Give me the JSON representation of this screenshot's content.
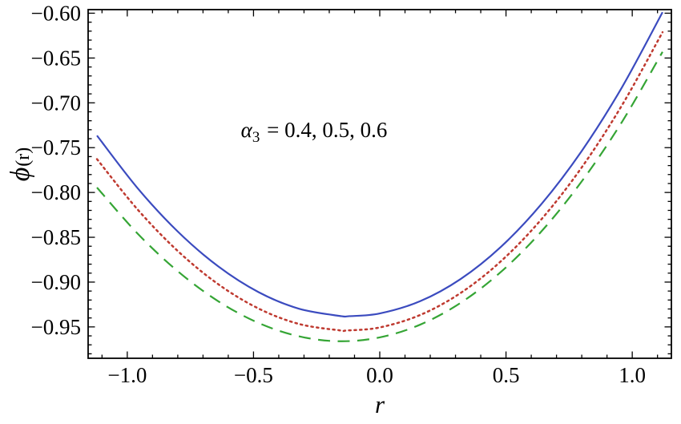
{
  "figure": {
    "background": "#ffffff",
    "frame_color": "#000000",
    "text_color": "#000000"
  },
  "chart_data": {
    "type": "line",
    "title": "",
    "xlabel": "r",
    "ylabel": "ϕ(r)",
    "ylabel_parts": {
      "symbol": "ϕ",
      "paren": "(r)"
    },
    "annotation": "α3 = 0.4, 0.5, 0.6",
    "annotation_parts": {
      "symbol": "α",
      "sub": "3",
      "rest": " =  0.4,  0.5,  0.6"
    },
    "annotation_pos": [
      -0.55,
      -0.738
    ],
    "xlim": [
      -1.155,
      1.155
    ],
    "ylim": [
      -0.985,
      -0.596
    ],
    "x_ticks": [
      -1.0,
      -0.5,
      0.0,
      0.5,
      1.0
    ],
    "x_tick_labels": [
      "−1.0",
      "−0.5",
      "0.0",
      "0.5",
      "1.0"
    ],
    "x_minor_step": 0.1,
    "y_ticks": [
      -0.6,
      -0.65,
      -0.7,
      -0.75,
      -0.8,
      -0.85,
      -0.9,
      -0.95
    ],
    "y_tick_labels": [
      "−0.60",
      "−0.65",
      "−0.70",
      "−0.75",
      "−0.80",
      "−0.85",
      "−0.90",
      "−0.95"
    ],
    "y_minor_step": 0.01,
    "grid": false,
    "legend": "none",
    "frame": true,
    "series": [
      {
        "name": "α3 = 0.4",
        "style": "solid",
        "color": "#3b4bbf",
        "points": [
          [
            -1.12,
            -0.7365
          ],
          [
            -0.96,
            -0.7949
          ],
          [
            -0.8,
            -0.8436
          ],
          [
            -0.64,
            -0.8824
          ],
          [
            -0.48,
            -0.9112
          ],
          [
            -0.32,
            -0.9297
          ],
          [
            -0.16,
            -0.9377
          ],
          [
            -0.12,
            -0.938
          ],
          [
            0.0,
            -0.935
          ],
          [
            0.16,
            -0.9213
          ],
          [
            0.32,
            -0.8966
          ],
          [
            0.48,
            -0.8606
          ],
          [
            0.64,
            -0.813
          ],
          [
            0.8,
            -0.7537
          ],
          [
            0.96,
            -0.6823
          ],
          [
            1.12,
            -0.5989
          ]
        ]
      },
      {
        "name": "α3 = 0.5",
        "style": "dotted",
        "color": "#bf3a30",
        "points": [
          [
            -1.12,
            -0.7628
          ],
          [
            -0.96,
            -0.8187
          ],
          [
            -0.8,
            -0.8653
          ],
          [
            -0.64,
            -0.9023
          ],
          [
            -0.48,
            -0.9295
          ],
          [
            -0.32,
            -0.9467
          ],
          [
            -0.16,
            -0.9538
          ],
          [
            -0.13,
            -0.954
          ],
          [
            0.0,
            -0.9506
          ],
          [
            0.16,
            -0.9367
          ],
          [
            0.32,
            -0.9122
          ],
          [
            0.48,
            -0.8767
          ],
          [
            0.64,
            -0.83
          ],
          [
            0.8,
            -0.772
          ],
          [
            0.96,
            -0.7024
          ],
          [
            1.12,
            -0.6212
          ]
        ]
      },
      {
        "name": "α3 = 0.6",
        "style": "dashed",
        "color": "#35a535",
        "points": [
          [
            -1.12,
            -0.7945
          ],
          [
            -0.96,
            -0.8456
          ],
          [
            -0.8,
            -0.8879
          ],
          [
            -0.64,
            -0.9213
          ],
          [
            -0.48,
            -0.9456
          ],
          [
            -0.32,
            -0.9605
          ],
          [
            -0.16,
            -0.966
          ],
          [
            0.0,
            -0.9617
          ],
          [
            0.16,
            -0.9475
          ],
          [
            0.32,
            -0.9232
          ],
          [
            0.48,
            -0.8886
          ],
          [
            0.64,
            -0.8435
          ],
          [
            0.8,
            -0.7876
          ],
          [
            0.96,
            -0.721
          ],
          [
            1.12,
            -0.6431
          ]
        ]
      }
    ]
  }
}
